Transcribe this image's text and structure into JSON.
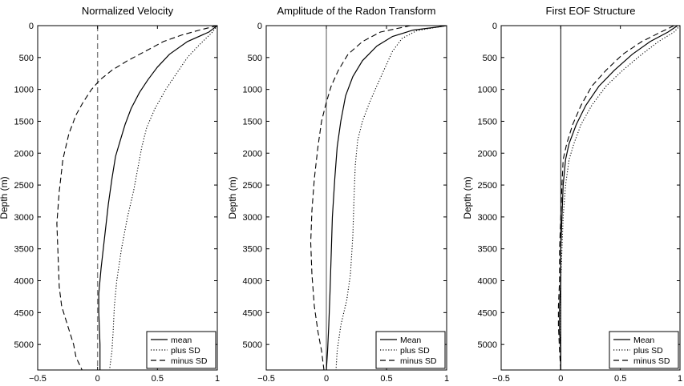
{
  "chart_data": [
    {
      "type": "line",
      "title": "Normalized Velocity",
      "xlabel": "",
      "ylabel": "Depth (m)",
      "xlim": [
        -0.5,
        1
      ],
      "ylim": [
        0,
        5400
      ],
      "y_reversed": true,
      "xticks": [
        "−0.5",
        "0",
        "0.5",
        "1"
      ],
      "yticks": [
        "0",
        "500",
        "1000",
        "1500",
        "2000",
        "2500",
        "3000",
        "3500",
        "4000",
        "4500",
        "5000"
      ],
      "legend_placement": "bottom-right",
      "zero_line": {
        "x": 0,
        "style": "dashed",
        "color": "#7f7f7f"
      },
      "series": [
        {
          "name": "mean",
          "style": "solid",
          "points": [
            [
              1,
              0
            ],
            [
              0.93,
              100
            ],
            [
              0.75,
              250
            ],
            [
              0.6,
              450
            ],
            [
              0.5,
              650
            ],
            [
              0.42,
              850
            ],
            [
              0.35,
              1050
            ],
            [
              0.28,
              1300
            ],
            [
              0.23,
              1550
            ],
            [
              0.19,
              1800
            ],
            [
              0.15,
              2050
            ],
            [
              0.12,
              2400
            ],
            [
              0.09,
              2800
            ],
            [
              0.06,
              3300
            ],
            [
              0.03,
              3800
            ],
            [
              0.01,
              4200
            ],
            [
              0.01,
              4500
            ],
            [
              0.02,
              5000
            ],
            [
              0.02,
              5400
            ]
          ]
        },
        {
          "name": "plus SD",
          "style": "dotted",
          "points": [
            [
              1,
              0
            ],
            [
              0.96,
              100
            ],
            [
              0.85,
              300
            ],
            [
              0.75,
              500
            ],
            [
              0.66,
              750
            ],
            [
              0.57,
              1000
            ],
            [
              0.48,
              1300
            ],
            [
              0.41,
              1600
            ],
            [
              0.37,
              1900
            ],
            [
              0.34,
              2200
            ],
            [
              0.3,
              2600
            ],
            [
              0.25,
              3000
            ],
            [
              0.2,
              3500
            ],
            [
              0.16,
              4000
            ],
            [
              0.14,
              4400
            ],
            [
              0.13,
              4800
            ],
            [
              0.12,
              5100
            ],
            [
              0.1,
              5400
            ]
          ]
        },
        {
          "name": "minus SD",
          "style": "dashed",
          "points": [
            [
              1,
              0
            ],
            [
              0.85,
              70
            ],
            [
              0.7,
              150
            ],
            [
              0.55,
              250
            ],
            [
              0.4,
              400
            ],
            [
              0.25,
              550
            ],
            [
              0.12,
              700
            ],
            [
              0.02,
              850
            ],
            [
              -0.05,
              1000
            ],
            [
              -0.12,
              1200
            ],
            [
              -0.18,
              1400
            ],
            [
              -0.24,
              1700
            ],
            [
              -0.29,
              2100
            ],
            [
              -0.32,
              2600
            ],
            [
              -0.34,
              3100
            ],
            [
              -0.33,
              3600
            ],
            [
              -0.32,
              4100
            ],
            [
              -0.3,
              4400
            ],
            [
              -0.25,
              4700
            ],
            [
              -0.2,
              5000
            ],
            [
              -0.18,
              5200
            ],
            [
              -0.13,
              5400
            ]
          ]
        }
      ]
    },
    {
      "type": "line",
      "title": "Amplitude of the Radon Transform",
      "xlabel": "",
      "ylabel": "Depth (m)",
      "xlim": [
        -0.5,
        1
      ],
      "ylim": [
        0,
        5400
      ],
      "y_reversed": true,
      "xticks": [
        "−0.5",
        "0",
        "0.5",
        "1"
      ],
      "yticks": [
        "0",
        "500",
        "1000",
        "1500",
        "2000",
        "2500",
        "3000",
        "3500",
        "4000",
        "4500",
        "5000"
      ],
      "legend_placement": "bottom-right",
      "zero_line": {
        "x": 0,
        "style": "solid",
        "color": "#555555"
      },
      "series": [
        {
          "name": "Mean",
          "style": "solid",
          "points": [
            [
              1,
              0
            ],
            [
              0.93,
              20
            ],
            [
              0.72,
              70
            ],
            [
              0.55,
              170
            ],
            [
              0.42,
              320
            ],
            [
              0.3,
              550
            ],
            [
              0.22,
              800
            ],
            [
              0.16,
              1100
            ],
            [
              0.12,
              1500
            ],
            [
              0.09,
              1900
            ],
            [
              0.07,
              2400
            ],
            [
              0.05,
              3000
            ],
            [
              0.04,
              3600
            ],
            [
              0.03,
              4200
            ],
            [
              0.02,
              4700
            ],
            [
              0.01,
              5100
            ],
            [
              0.0,
              5400
            ]
          ]
        },
        {
          "name": "plus SD",
          "style": "dotted",
          "points": [
            [
              1,
              0
            ],
            [
              0.9,
              30
            ],
            [
              0.75,
              80
            ],
            [
              0.63,
              200
            ],
            [
              0.55,
              400
            ],
            [
              0.49,
              650
            ],
            [
              0.43,
              900
            ],
            [
              0.36,
              1200
            ],
            [
              0.3,
              1500
            ],
            [
              0.26,
              1800
            ],
            [
              0.24,
              2200
            ],
            [
              0.23,
              2700
            ],
            [
              0.22,
              3300
            ],
            [
              0.2,
              3900
            ],
            [
              0.17,
              4300
            ],
            [
              0.12,
              4700
            ],
            [
              0.09,
              5100
            ],
            [
              0.08,
              5400
            ]
          ]
        },
        {
          "name": "minus SD",
          "style": "dashed",
          "points": [
            [
              0.7,
              0
            ],
            [
              0.45,
              100
            ],
            [
              0.3,
              250
            ],
            [
              0.18,
              450
            ],
            [
              0.1,
              700
            ],
            [
              0.04,
              950
            ],
            [
              0.0,
              1200
            ],
            [
              -0.04,
              1500
            ],
            [
              -0.07,
              1900
            ],
            [
              -0.1,
              2400
            ],
            [
              -0.12,
              2900
            ],
            [
              -0.13,
              3400
            ],
            [
              -0.12,
              3900
            ],
            [
              -0.1,
              4400
            ],
            [
              -0.07,
              4800
            ],
            [
              -0.04,
              5100
            ],
            [
              -0.02,
              5400
            ]
          ]
        }
      ]
    },
    {
      "type": "line",
      "title": "First EOF Structure",
      "xlabel": "",
      "ylabel": "Depth (m)",
      "xlim": [
        -0.5,
        1
      ],
      "ylim": [
        0,
        5400
      ],
      "y_reversed": true,
      "xticks": [
        "−0.5",
        "0",
        "0.5",
        "1"
      ],
      "yticks": [
        "0",
        "500",
        "1000",
        "1500",
        "2000",
        "2500",
        "3000",
        "3500",
        "4000",
        "4500",
        "5000"
      ],
      "legend_placement": "bottom-right",
      "zero_line": {
        "x": 0,
        "style": "solid",
        "color": "#000000"
      },
      "series": [
        {
          "name": "Mean",
          "style": "solid",
          "points": [
            [
              0.98,
              0
            ],
            [
              0.9,
              100
            ],
            [
              0.75,
              250
            ],
            [
              0.6,
              450
            ],
            [
              0.45,
              700
            ],
            [
              0.32,
              950
            ],
            [
              0.21,
              1250
            ],
            [
              0.13,
              1550
            ],
            [
              0.07,
              1850
            ],
            [
              0.04,
              2100
            ],
            [
              0.02,
              2500
            ],
            [
              0.01,
              3000
            ],
            [
              0.0,
              3500
            ],
            [
              0.0,
              4000
            ],
            [
              -0.01,
              4400
            ],
            [
              -0.01,
              4800
            ],
            [
              0.0,
              5100
            ],
            [
              0.0,
              5400
            ]
          ]
        },
        {
          "name": "plus SD",
          "style": "dotted",
          "points": [
            [
              1,
              0
            ],
            [
              0.95,
              100
            ],
            [
              0.82,
              250
            ],
            [
              0.68,
              450
            ],
            [
              0.52,
              700
            ],
            [
              0.38,
              950
            ],
            [
              0.26,
              1250
            ],
            [
              0.17,
              1550
            ],
            [
              0.11,
              1850
            ],
            [
              0.07,
              2100
            ],
            [
              0.04,
              2500
            ],
            [
              0.02,
              3000
            ],
            [
              0.01,
              3500
            ],
            [
              0.0,
              4000
            ],
            [
              0.0,
              4500
            ],
            [
              0.0,
              5000
            ],
            [
              0.0,
              5400
            ]
          ]
        },
        {
          "name": "minus SD",
          "style": "dashed",
          "points": [
            [
              0.95,
              0
            ],
            [
              0.84,
              100
            ],
            [
              0.68,
              250
            ],
            [
              0.52,
              450
            ],
            [
              0.38,
              700
            ],
            [
              0.26,
              950
            ],
            [
              0.17,
              1250
            ],
            [
              0.1,
              1550
            ],
            [
              0.05,
              1850
            ],
            [
              0.02,
              2100
            ],
            [
              0.01,
              2500
            ],
            [
              0.0,
              3000
            ],
            [
              -0.01,
              3500
            ],
            [
              -0.01,
              4000
            ],
            [
              -0.02,
              4400
            ],
            [
              -0.02,
              4700
            ],
            [
              -0.01,
              5100
            ],
            [
              0.0,
              5400
            ]
          ]
        }
      ]
    }
  ]
}
